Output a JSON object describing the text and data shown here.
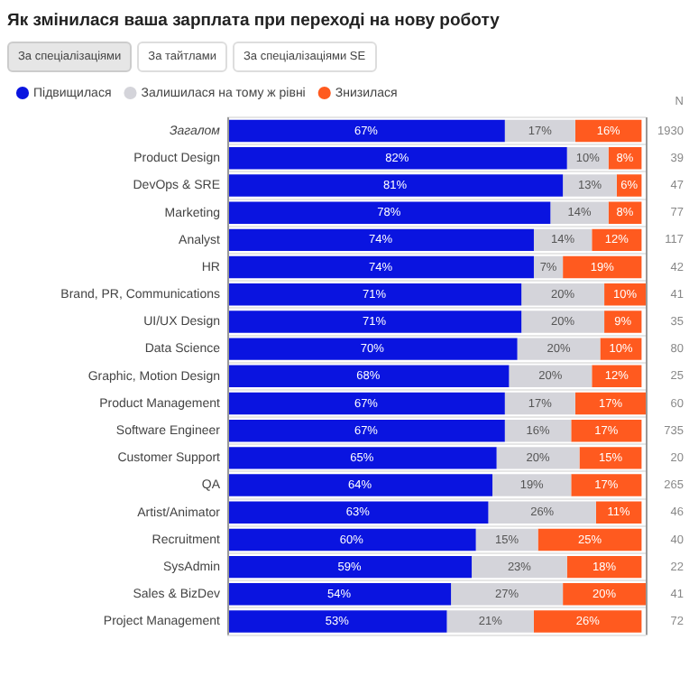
{
  "chart_data": {
    "type": "bar",
    "orientation": "horizontal",
    "stacked": true,
    "title": "Як змінилася ваша зарплата при переході на нову роботу",
    "categories": [
      "Загалом",
      "Product Design",
      "DevOps & SRE",
      "Marketing",
      "Analyst",
      "HR",
      "Brand, PR, Communications",
      "UI/UX Design",
      "Data Science",
      "Graphic, Motion Design",
      "Product Management",
      "Software Engineer",
      "Customer Support",
      "QA",
      "Artist/Animator",
      "Recruitment",
      "SysAdmin",
      "Sales & BizDev",
      "Project Management"
    ],
    "series": [
      {
        "name": "Підвищилася",
        "color": "#0a14e0",
        "values": [
          67,
          82,
          81,
          78,
          74,
          74,
          71,
          71,
          70,
          68,
          67,
          67,
          65,
          64,
          63,
          60,
          59,
          54,
          53
        ],
        "value_labels": [
          "67%",
          "82%",
          "81%",
          "78%",
          "74%",
          "74%",
          "71%",
          "71%",
          "70%",
          "68%",
          "67%",
          "67%",
          "65%",
          "64%",
          "63%",
          "60%",
          "59%",
          "54%",
          "53%"
        ]
      },
      {
        "name": "Залишилася на тому ж рівні",
        "color": "#d4d4da",
        "values": [
          17,
          10,
          13,
          14,
          14,
          7,
          20,
          20,
          20,
          20,
          17,
          16,
          20,
          19,
          26,
          15,
          23,
          27,
          21
        ],
        "value_labels": [
          "17%",
          "10%",
          "13%",
          "14%",
          "14%",
          "7%",
          "20%",
          "20%",
          "20%",
          "20%",
          "17%",
          "16%",
          "20%",
          "19%",
          "26%",
          "15%",
          "23%",
          "27%",
          "21%"
        ]
      },
      {
        "name": "Знизилася",
        "color": "#ff5a1f",
        "values": [
          16,
          8,
          6,
          8,
          12,
          19,
          10,
          9,
          10,
          12,
          17,
          17,
          15,
          17,
          11,
          25,
          18,
          20,
          26
        ],
        "value_labels": [
          "16%",
          "8%",
          "6%",
          "8%",
          "12%",
          "19%",
          "10%",
          "9%",
          "10%",
          "12%",
          "17%",
          "17%",
          "15%",
          "17%",
          "11%",
          "25%",
          "18%",
          "20%",
          "26%"
        ]
      }
    ],
    "tick_labels": "y",
    "grid": "y",
    "legend": "top left",
    "annotations": [
      "За спеціалізаціями",
      "За тайтлами",
      "За спеціалізаціями SE",
      "N",
      "1930",
      "39",
      "47",
      "77",
      "117",
      "42",
      "41",
      "35",
      "80",
      "25",
      "60",
      "735",
      "20",
      "265",
      "46",
      "40",
      "22",
      "41",
      "72"
    ]
  }
}
